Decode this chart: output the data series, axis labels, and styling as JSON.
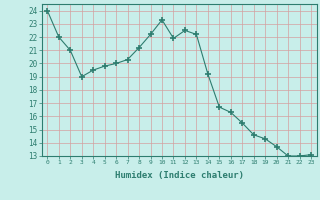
{
  "x": [
    0,
    1,
    2,
    3,
    4,
    5,
    6,
    7,
    8,
    9,
    10,
    11,
    12,
    13,
    14,
    15,
    16,
    17,
    18,
    19,
    20,
    21,
    22,
    23
  ],
  "y": [
    24,
    22,
    21,
    19,
    19.5,
    19.8,
    20,
    20.3,
    21.2,
    22.2,
    23.3,
    21.9,
    22.5,
    22.2,
    19.2,
    16.7,
    16.3,
    15.5,
    14.6,
    14.3,
    13.7,
    13,
    13,
    13.1
  ],
  "line_color": "#2d7d6f",
  "marker": "+",
  "marker_size": 4,
  "bg_color": "#c8eeea",
  "grid_color": "#d4a0a0",
  "tick_color": "#2d7d6f",
  "xlabel": "Humidex (Indice chaleur)",
  "ylim": [
    13,
    24.5
  ],
  "xlim": [
    -0.5,
    23.5
  ],
  "yticks": [
    13,
    14,
    15,
    16,
    17,
    18,
    19,
    20,
    21,
    22,
    23,
    24
  ],
  "xticks": [
    0,
    1,
    2,
    3,
    4,
    5,
    6,
    7,
    8,
    9,
    10,
    11,
    12,
    13,
    14,
    15,
    16,
    17,
    18,
    19,
    20,
    21,
    22,
    23
  ]
}
